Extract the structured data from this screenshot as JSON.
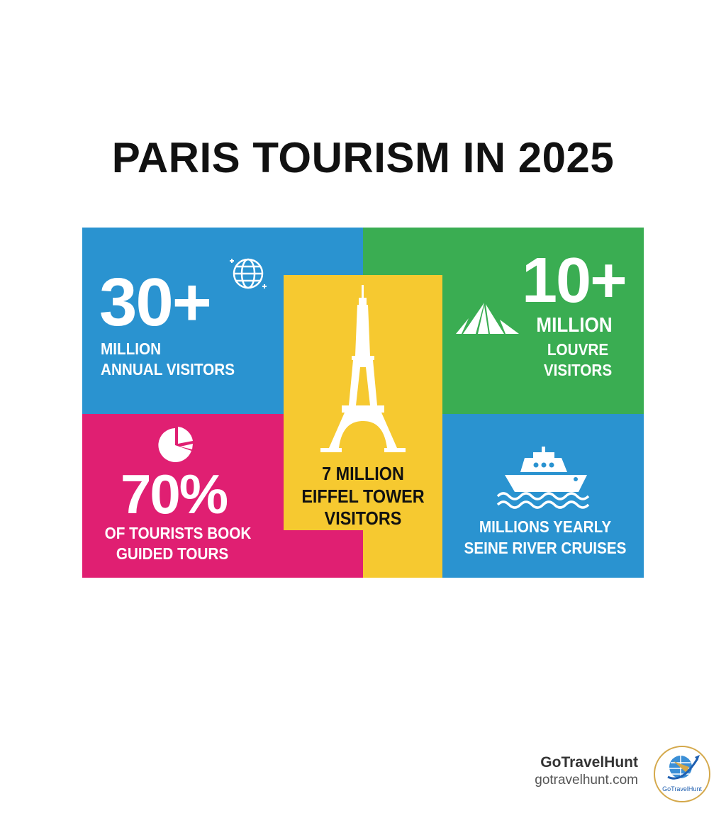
{
  "title": "PARIS TOURISM IN 2025",
  "colors": {
    "blue": "#2A93D0",
    "green": "#3AAD52",
    "pink": "#E01F72",
    "yellow": "#F6C930"
  },
  "tiles": {
    "annual": {
      "value": "30+",
      "line1": "MILLION",
      "line2": "ANNUAL VISITORS",
      "icon": "globe-icon"
    },
    "louvre": {
      "value": "10+",
      "line1": "MILLION",
      "line2": "LOUVRE",
      "line3": "VISITORS",
      "icon": "pyramid-icon"
    },
    "eiffel": {
      "line1": "7 MILLION",
      "line2": "EIFFEL TOWER",
      "line3": "VISITORS",
      "icon": "eiffel-tower-icon"
    },
    "guided": {
      "value": "70%",
      "line1": "OF TOURISTS BOOK",
      "line2": "GUIDED TOURS",
      "icon": "pie-chart-icon"
    },
    "seine": {
      "line1": "MILLIONS YEARLY",
      "line2": "SEINE RIVER CRUISES",
      "icon": "ship-icon"
    }
  },
  "brand": {
    "name": "GoTravelHunt",
    "url": "gotravelhunt.com",
    "logo_text": "GoTravelHunt"
  }
}
